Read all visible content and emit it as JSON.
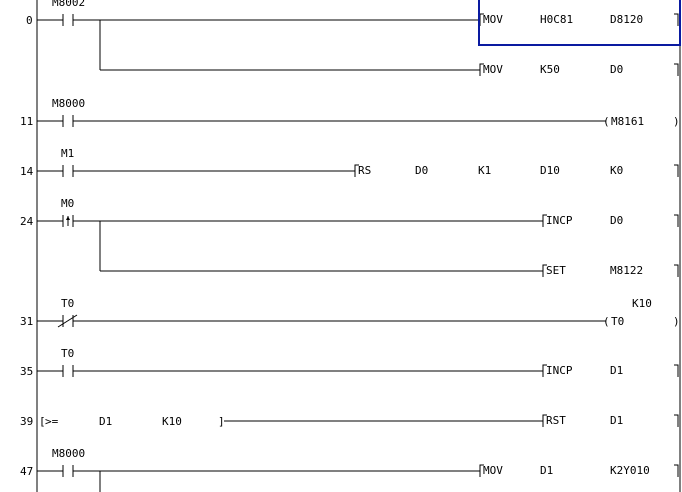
{
  "highlight_color": "#0a1aa0",
  "rungs": [
    {
      "step": "0",
      "contact": {
        "type": "no",
        "label": "M8002"
      },
      "outputs": [
        {
          "kind": "func",
          "op": "MOV",
          "args": [
            "H0C81",
            "D8120"
          ],
          "col": "mov",
          "selected": true
        },
        {
          "kind": "func",
          "op": "MOV",
          "args": [
            "K50",
            "D0"
          ],
          "col": "mov",
          "branch": true
        }
      ]
    },
    {
      "step": "11",
      "contact": {
        "type": "no",
        "label": "M8000"
      },
      "outputs": [
        {
          "kind": "coil",
          "op": "M8161"
        }
      ]
    },
    {
      "step": "14",
      "contact": {
        "type": "no",
        "label": "M1"
      },
      "outputs": [
        {
          "kind": "func",
          "op": "RS",
          "args": [
            "D0",
            "K1",
            "D10",
            "K0"
          ],
          "col": "rs"
        }
      ]
    },
    {
      "step": "24",
      "contact": {
        "type": "rise",
        "label": "M0"
      },
      "outputs": [
        {
          "kind": "func",
          "op": "INCP",
          "args": [
            "D0"
          ],
          "col": "incp"
        },
        {
          "kind": "func",
          "op": "SET",
          "args": [
            "M8122"
          ],
          "col": "incp",
          "branch": true
        }
      ]
    },
    {
      "step": "31",
      "contact": {
        "type": "nc",
        "label": "T0"
      },
      "outputs": [
        {
          "kind": "coil",
          "op": "T0",
          "setting": "K10"
        }
      ]
    },
    {
      "step": "35",
      "contact": {
        "type": "no",
        "label": "T0"
      },
      "outputs": [
        {
          "kind": "func",
          "op": "INCP",
          "args": [
            "D1"
          ],
          "col": "incp"
        }
      ]
    },
    {
      "step": "39",
      "contact": {
        "type": "cmp",
        "op": ">=",
        "args": [
          "D1",
          "K10"
        ]
      },
      "outputs": [
        {
          "kind": "func",
          "op": "RST",
          "args": [
            "D1"
          ],
          "col": "incp"
        }
      ]
    },
    {
      "step": "47",
      "contact": {
        "type": "no",
        "label": "M8000"
      },
      "outputs": [
        {
          "kind": "func",
          "op": "MOV",
          "args": [
            "D1",
            "K2Y010"
          ],
          "col": "mov",
          "branch_stub": true
        }
      ]
    }
  ]
}
